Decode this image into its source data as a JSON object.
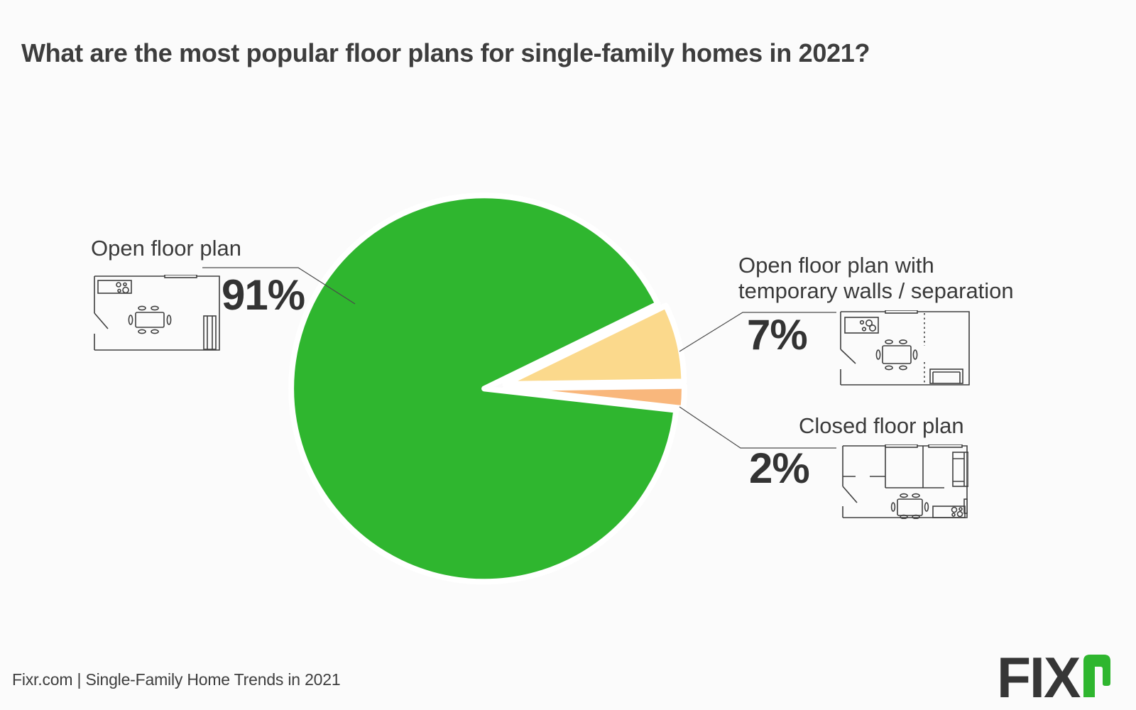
{
  "title": "What are the most popular floor plans for single-family homes in 2021?",
  "chart_data": {
    "type": "pie",
    "title": "What are the most popular floor plans for single-family homes in 2021?",
    "unit": "%",
    "slices": [
      {
        "label": "Open floor plan",
        "value": 91,
        "display": "91%",
        "color": "#2FB62F",
        "icon": "open-floor-plan-icon"
      },
      {
        "label": "Open floor plan with temporary walls / separation",
        "label_lines": [
          "Open floor plan with",
          "temporary walls / separation"
        ],
        "value": 7,
        "display": "7%",
        "color": "#FBD98C",
        "icon": "temporary-walls-floor-plan-icon"
      },
      {
        "label": "Closed floor plan",
        "value": 2,
        "display": "2%",
        "color": "#F9B77C",
        "icon": "closed-floor-plan-icon"
      }
    ],
    "layout": {
      "start_angle_deg": -26,
      "gap_style": "exploded slices with white separators",
      "legend": "callout labels with leader lines",
      "label_positions": {
        "open": "left",
        "temporary": "right-top",
        "closed": "right-bottom"
      }
    }
  },
  "footer": {
    "source": "Fixr.com | Single-Family Home Trends in 2021"
  },
  "logo": {
    "text": "FIX",
    "r_letter": "r",
    "accent_color": "#2FB62F"
  }
}
